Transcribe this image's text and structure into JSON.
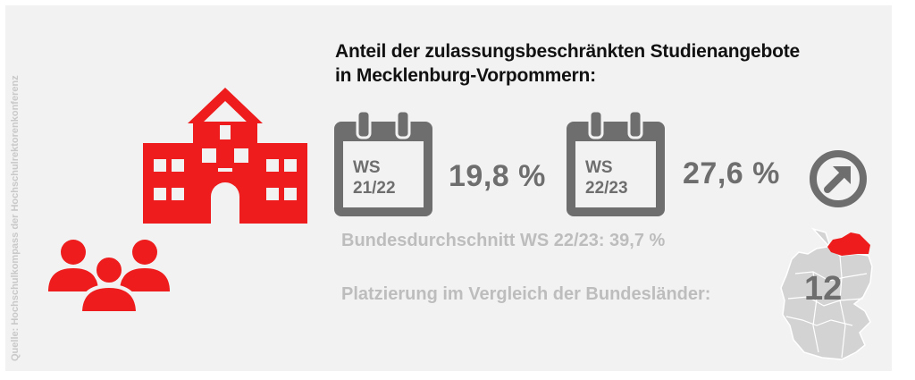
{
  "source": "Quelle: Hochschulkompass der Hochschulrektorenkonferenz",
  "title": {
    "line1": "Anteil der zulassungsbeschränkten Studienangebote",
    "line2": "in Mecklenburg-Vorpommern:"
  },
  "semesters": [
    {
      "ws": "WS",
      "term": "21/22",
      "value": "19,8 %"
    },
    {
      "ws": "WS",
      "term": "22/23",
      "value": "27,6 %"
    }
  ],
  "trend": "up",
  "average": "Bundesdurchschnitt WS 22/23: 39,7 %",
  "ranking": {
    "label": "Platzierung im Vergleich der Bundesländer:",
    "value": "12"
  },
  "colors": {
    "accent": "#ee1c1c",
    "gray": "#6e6e6e",
    "light": "#bdbdbd",
    "map": "#d3d3d3"
  },
  "icons": [
    "university-building-icon",
    "people-group-icon",
    "calendar-icon",
    "trend-up-arrow-icon",
    "germany-map-icon"
  ]
}
